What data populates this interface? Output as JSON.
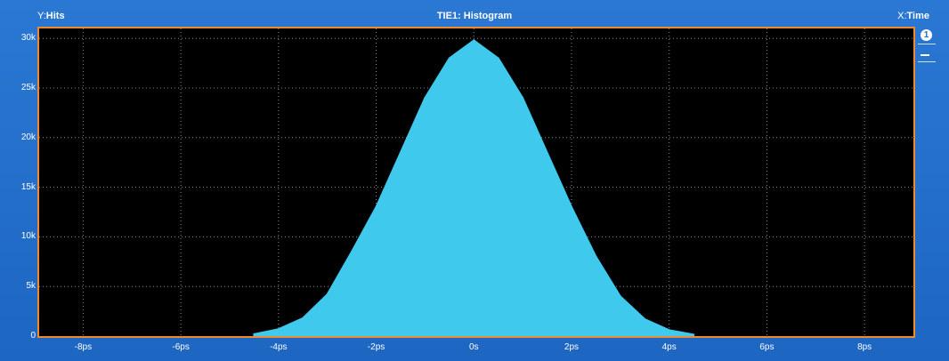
{
  "header": {
    "y_prefix": "Y:",
    "y_label": "Hits",
    "title": "TIE1: Histogram",
    "x_prefix": "X:",
    "x_label": "Time"
  },
  "side": {
    "badge": "1",
    "icons": [
      "channel-badge-icon",
      "minus-icon"
    ]
  },
  "colors": {
    "background": "#1f6cc8",
    "plot_border": "#f08a2c",
    "bars": "#3fc9ec",
    "grid": "#8a8a8a"
  },
  "chart_data": {
    "type": "area",
    "title": "TIE1: Histogram",
    "xlabel": "Time",
    "ylabel": "Hits",
    "x_unit": "ps",
    "xlim": [
      -8.9,
      9.0
    ],
    "ylim": [
      0,
      31000
    ],
    "grid": true,
    "x_ticks": [
      "-8ps",
      "-6ps",
      "-4ps",
      "-2ps",
      "0s",
      "2ps",
      "4ps",
      "6ps",
      "8ps"
    ],
    "y_ticks": [
      "0",
      "5k",
      "10k",
      "15k",
      "20k",
      "25k",
      "30k"
    ],
    "series": [
      {
        "x": [
          -4.5,
          -4.0,
          -3.5,
          -3.0,
          -2.5,
          -2.0,
          -1.5,
          -1.0,
          -0.5,
          0.0,
          0.5,
          1.0,
          1.5,
          2.0,
          2.5,
          3.0,
          3.5,
          4.0,
          4.5
        ],
        "y": [
          200,
          700,
          1800,
          4200,
          8500,
          13000,
          18500,
          24000,
          28000,
          29800,
          28000,
          24000,
          18500,
          13000,
          8000,
          4000,
          1700,
          600,
          150
        ]
      }
    ]
  }
}
